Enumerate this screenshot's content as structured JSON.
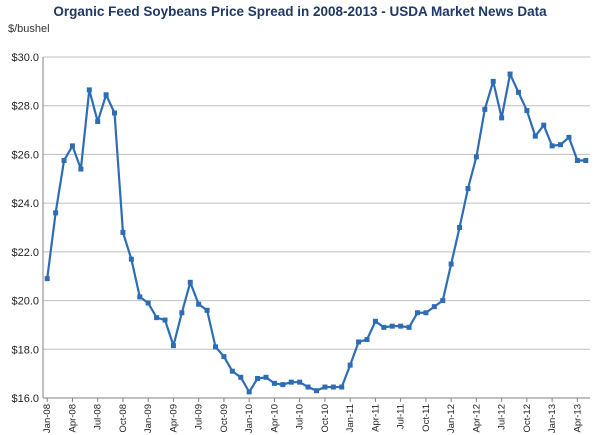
{
  "chart_data": {
    "type": "line",
    "title": "Organic Feed Soybeans Price Spread in 2008-2013 - USDA Market News Data",
    "ylabel": "$/bushel",
    "xlabel": "",
    "ylim": [
      16.0,
      30.0
    ],
    "yticks": [
      "$16.0",
      "$18.0",
      "$20.0",
      "$22.0",
      "$24.0",
      "$26.0",
      "$28.0",
      "$30.0"
    ],
    "ytick_values": [
      16,
      18,
      20,
      22,
      24,
      26,
      28,
      30
    ],
    "xtick_labels": [
      "Jan-08",
      "Apr-08",
      "Jul-08",
      "Oct-08",
      "Jan-09",
      "Apr-09",
      "Jul-09",
      "Oct-09",
      "Jan-10",
      "Apr-10",
      "Jul-10",
      "Oct-10",
      "Jan-11",
      "Apr-11",
      "Jul-11",
      "Oct-11",
      "Jan-12",
      "Apr-12",
      "Jul-12",
      "Oct-12",
      "Jan-13",
      "Apr-13"
    ],
    "grid": true,
    "legend": "none",
    "line_color": "#2e6db4",
    "series": [
      {
        "x": [
          "Jan-08",
          "Feb-08",
          "Mar-08",
          "Apr-08",
          "May-08",
          "Jun-08",
          "Jul-08",
          "Aug-08",
          "Sep-08",
          "Oct-08",
          "Nov-08",
          "Dec-08",
          "Jan-09",
          "Feb-09",
          "Mar-09",
          "Apr-09",
          "May-09",
          "Jun-09",
          "Jul-09",
          "Aug-09",
          "Sep-09",
          "Oct-09",
          "Nov-09",
          "Dec-09",
          "Jan-10",
          "Feb-10",
          "Mar-10",
          "Apr-10",
          "May-10",
          "Jun-10",
          "Jul-10",
          "Aug-10",
          "Sep-10",
          "Oct-10",
          "Nov-10",
          "Dec-10",
          "Jan-11",
          "Feb-11",
          "Mar-11",
          "Apr-11",
          "May-11",
          "Jun-11",
          "Jul-11",
          "Aug-11",
          "Sep-11",
          "Oct-11",
          "Nov-11",
          "Dec-11",
          "Jan-12",
          "Feb-12",
          "Mar-12",
          "Apr-12",
          "May-12",
          "Jun-12",
          "Jul-12",
          "Aug-12",
          "Sep-12",
          "Oct-12",
          "Nov-12",
          "Dec-12",
          "Jan-13",
          "Feb-13",
          "Mar-13",
          "Apr-13",
          "May-13"
        ],
        "values": [
          20.9,
          23.6,
          25.75,
          26.35,
          25.4,
          28.65,
          27.35,
          28.45,
          27.7,
          22.8,
          21.7,
          20.15,
          19.9,
          19.3,
          19.2,
          18.15,
          19.5,
          20.75,
          19.85,
          19.6,
          18.1,
          17.7,
          17.1,
          16.85,
          16.25,
          16.8,
          16.85,
          16.6,
          16.55,
          16.65,
          16.65,
          16.45,
          16.3,
          16.45,
          16.45,
          16.45,
          17.35,
          18.3,
          18.4,
          19.15,
          18.9,
          18.95,
          18.95,
          18.9,
          19.5,
          19.5,
          19.75,
          20.0,
          21.5,
          23.0,
          24.6,
          25.9,
          27.85,
          29.0,
          27.5,
          29.3,
          28.55,
          27.8,
          26.75,
          27.2,
          26.35,
          26.4,
          26.7,
          25.75,
          25.75
        ]
      }
    ]
  }
}
